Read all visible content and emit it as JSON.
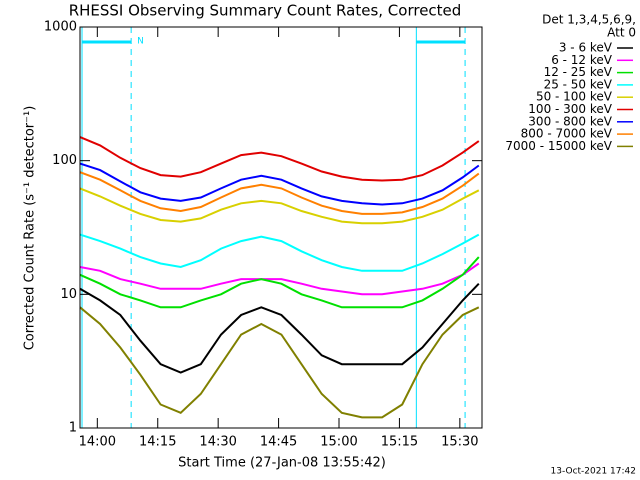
{
  "chart_data": {
    "type": "line",
    "title": "RHESSI Observing Summary Count Rates, Corrected",
    "xlabel": "Start Time (27-Jan-08 13:55:42)",
    "ylabel": "Corrected Count Rate (s⁻¹ detector⁻¹)",
    "legend_title": [
      "Det 1,3,4,5,6,9,",
      "Att 0"
    ],
    "timestamp": "13-Oct-2021 17:42",
    "log_y": true,
    "x": [
      0,
      5,
      10,
      15,
      20,
      25,
      30,
      35,
      40,
      45,
      50,
      55,
      60,
      65,
      70,
      75,
      80,
      85,
      90,
      95,
      99
    ],
    "xlim": [
      0,
      99.8
    ],
    "xticks": [
      {
        "value": 4.3,
        "label": "14:00"
      },
      {
        "value": 19.3,
        "label": "14:15"
      },
      {
        "value": 34.3,
        "label": "14:30"
      },
      {
        "value": 49.3,
        "label": "14:45"
      },
      {
        "value": 64.3,
        "label": "15:00"
      },
      {
        "value": 79.3,
        "label": "15:15"
      },
      {
        "value": 94.3,
        "label": "15:30"
      }
    ],
    "ylim": [
      1,
      1000
    ],
    "yticks": [
      1,
      10,
      100,
      1000
    ],
    "night": [
      {
        "start": 0.5,
        "end": 12.7,
        "label": "N"
      },
      {
        "start": 83.5,
        "end": 95.6
      }
    ],
    "night_color": "#00e0ff",
    "series": [
      {
        "name": "3 - 6 keV",
        "color": "#000000",
        "values": [
          11,
          9,
          7,
          4.5,
          3,
          2.6,
          3,
          5,
          7,
          8,
          7,
          5,
          3.5,
          3,
          3,
          3,
          3,
          4,
          6,
          9,
          12
        ]
      },
      {
        "name": "6 - 12 keV",
        "color": "#ff00ff",
        "values": [
          16,
          15,
          13,
          12,
          11,
          11,
          11,
          12,
          13,
          13,
          13,
          12,
          11,
          10.5,
          10,
          10,
          10.5,
          11,
          12,
          14,
          17
        ]
      },
      {
        "name": "12 - 25 keV",
        "color": "#00e000",
        "values": [
          14,
          12,
          10,
          9,
          8,
          8,
          9,
          10,
          12,
          13,
          12,
          10,
          9,
          8,
          8,
          8,
          8,
          9,
          11,
          14,
          19
        ]
      },
      {
        "name": "25 - 50 keV",
        "color": "#00ffff",
        "values": [
          28,
          25,
          22,
          19,
          17,
          16,
          18,
          22,
          25,
          27,
          25,
          21,
          18,
          16,
          15,
          15,
          15,
          17,
          20,
          24,
          28
        ]
      },
      {
        "name": "50 - 100 keV",
        "color": "#d8d000",
        "values": [
          62,
          54,
          46,
          40,
          36,
          35,
          37,
          43,
          48,
          50,
          48,
          42,
          38,
          35,
          34,
          34,
          35,
          38,
          43,
          52,
          60
        ]
      },
      {
        "name": "100 - 300 keV",
        "color": "#e00000",
        "values": [
          150,
          130,
          105,
          88,
          78,
          76,
          82,
          95,
          110,
          115,
          108,
          95,
          83,
          76,
          72,
          71,
          72,
          78,
          92,
          115,
          140
        ]
      },
      {
        "name": "300 - 800 keV",
        "color": "#0000ff",
        "values": [
          95,
          85,
          70,
          58,
          52,
          50,
          53,
          62,
          72,
          77,
          72,
          62,
          54,
          50,
          48,
          47,
          48,
          52,
          60,
          75,
          92
        ]
      },
      {
        "name": "800 - 7000 keV",
        "color": "#ff8000",
        "values": [
          82,
          72,
          60,
          50,
          44,
          42,
          45,
          53,
          62,
          66,
          62,
          53,
          46,
          42,
          40,
          40,
          41,
          45,
          52,
          65,
          80
        ]
      },
      {
        "name": "7000 - 15000 keV",
        "color": "#808000",
        "values": [
          8,
          6,
          4,
          2.5,
          1.5,
          1.3,
          1.8,
          3,
          5,
          6,
          5,
          3,
          1.8,
          1.3,
          1.2,
          1.2,
          1.5,
          3,
          5,
          7,
          8
        ]
      }
    ]
  }
}
